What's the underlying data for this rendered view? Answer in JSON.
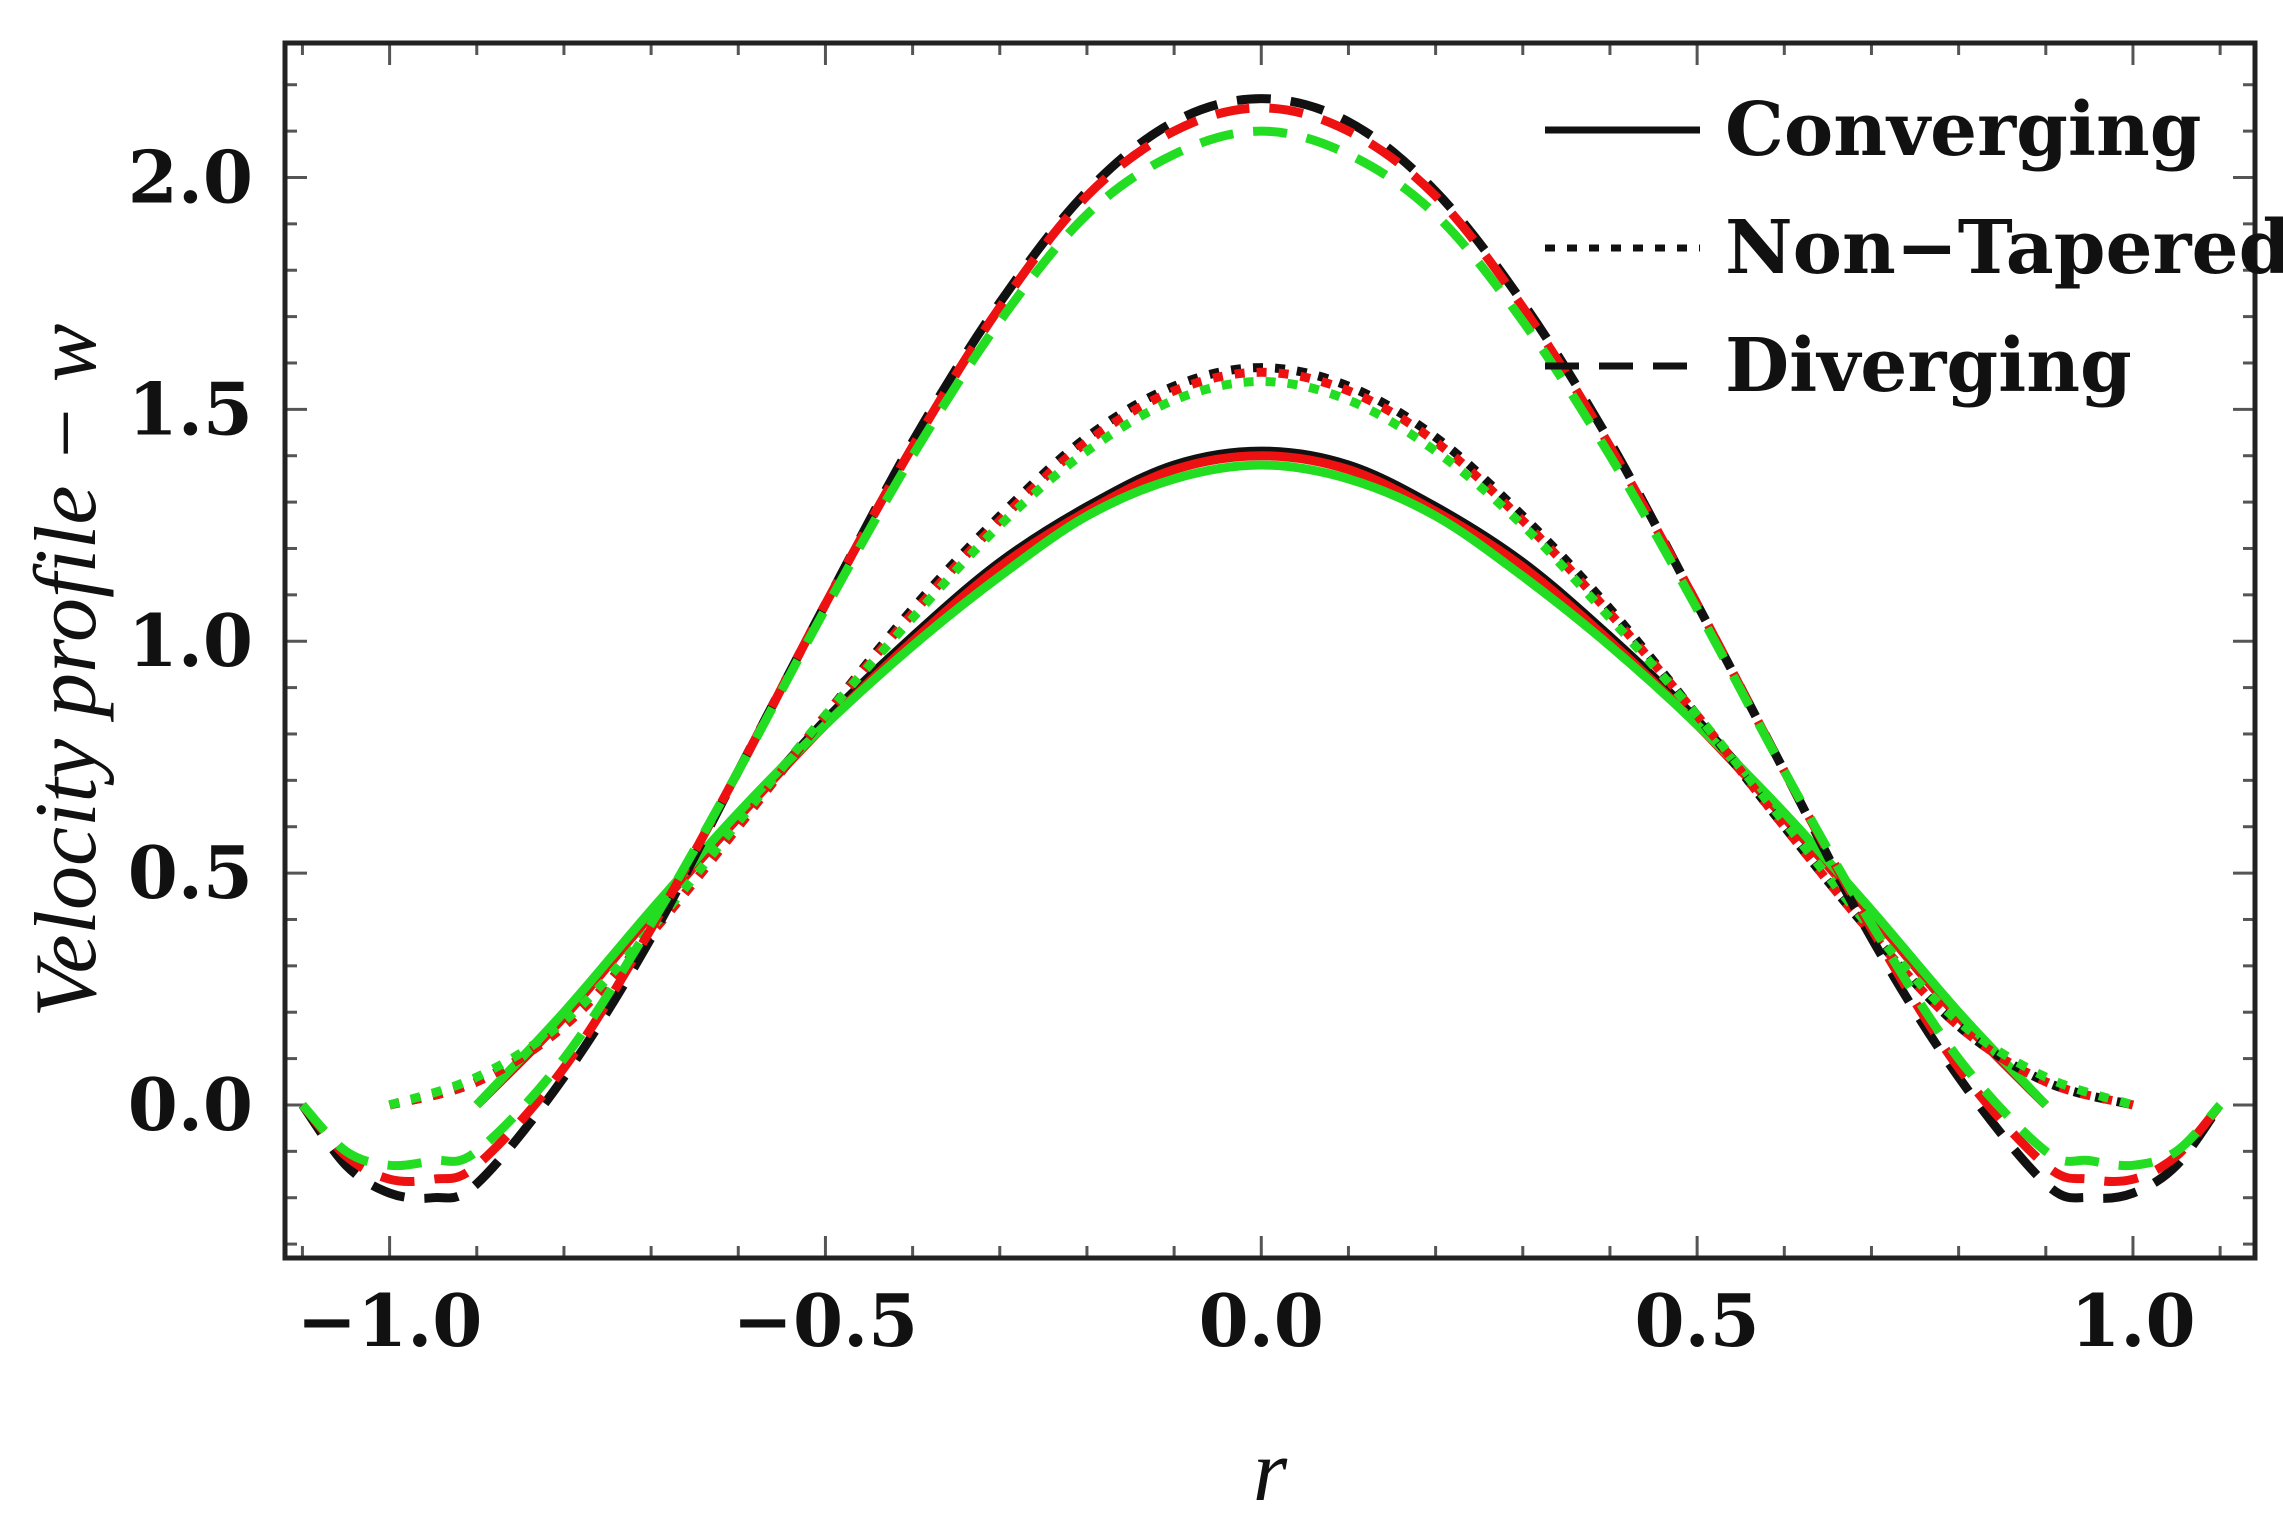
{
  "chart_data": {
    "type": "line",
    "title": "",
    "xlabel": "r",
    "ylabel": "Velocity profile − w",
    "xlim": [
      -1.12,
      1.14
    ],
    "ylim": [
      -0.33,
      2.29
    ],
    "xticks": [
      -1.0,
      -0.5,
      0.0,
      0.5,
      1.0
    ],
    "xtick_labels": [
      "−1.0",
      "−0.5",
      "0.0",
      "0.5",
      "1.0"
    ],
    "yticks": [
      0.0,
      0.5,
      1.0,
      1.5,
      2.0
    ],
    "ytick_labels": [
      "0.0",
      "0.5",
      "1.0",
      "1.5",
      "2.0"
    ],
    "grid": false,
    "legend_position": "top-right",
    "legend": [
      {
        "label": "Converging",
        "style": "solid"
      },
      {
        "label": "Non−Tapered",
        "style": "dotted"
      },
      {
        "label": "Diverging",
        "style": "dashed"
      }
    ],
    "colors": {
      "black": "#111111",
      "red": "#ee1111",
      "green": "#22dd22",
      "frame": "#222222"
    },
    "series": [
      {
        "name": "Converging (black)",
        "style": "solid",
        "color": "#111111",
        "x": [
          -0.9,
          -0.8,
          -0.7,
          -0.6,
          -0.5,
          -0.4,
          -0.3,
          -0.2,
          -0.1,
          0.0,
          0.1,
          0.2,
          0.3,
          0.4,
          0.5,
          0.6,
          0.7,
          0.8,
          0.9
        ],
        "values": [
          0.0,
          0.19,
          0.41,
          0.62,
          0.83,
          1.01,
          1.17,
          1.29,
          1.38,
          1.41,
          1.38,
          1.29,
          1.17,
          1.01,
          0.83,
          0.62,
          0.41,
          0.19,
          0.0
        ]
      },
      {
        "name": "Converging (red)",
        "style": "solid",
        "color": "#ee1111",
        "x": [
          -0.9,
          -0.8,
          -0.7,
          -0.6,
          -0.5,
          -0.4,
          -0.3,
          -0.2,
          -0.1,
          0.0,
          0.1,
          0.2,
          0.3,
          0.4,
          0.5,
          0.6,
          0.7,
          0.8,
          0.9
        ],
        "values": [
          0.0,
          0.19,
          0.41,
          0.62,
          0.82,
          1.0,
          1.16,
          1.28,
          1.37,
          1.4,
          1.37,
          1.28,
          1.16,
          1.0,
          0.82,
          0.62,
          0.41,
          0.19,
          0.0
        ]
      },
      {
        "name": "Converging (green)",
        "style": "solid",
        "color": "#22dd22",
        "x": [
          -0.9,
          -0.8,
          -0.7,
          -0.6,
          -0.5,
          -0.4,
          -0.3,
          -0.2,
          -0.1,
          0.0,
          0.1,
          0.2,
          0.3,
          0.4,
          0.5,
          0.6,
          0.7,
          0.8,
          0.9
        ],
        "values": [
          0.0,
          0.2,
          0.42,
          0.63,
          0.82,
          0.99,
          1.14,
          1.27,
          1.35,
          1.38,
          1.35,
          1.27,
          1.14,
          0.99,
          0.82,
          0.63,
          0.42,
          0.2,
          0.0
        ]
      },
      {
        "name": "Non-Tapered (black)",
        "style": "dotted",
        "color": "#111111",
        "x": [
          -1.0,
          -0.9,
          -0.8,
          -0.7,
          -0.6,
          -0.5,
          -0.4,
          -0.3,
          -0.2,
          -0.1,
          0.0,
          0.1,
          0.2,
          0.3,
          0.4,
          0.5,
          0.6,
          0.7,
          0.8,
          0.9,
          1.0
        ],
        "values": [
          0.0,
          0.05,
          0.17,
          0.37,
          0.6,
          0.84,
          1.07,
          1.27,
          1.44,
          1.55,
          1.59,
          1.55,
          1.44,
          1.27,
          1.07,
          0.84,
          0.6,
          0.37,
          0.17,
          0.05,
          0.0
        ]
      },
      {
        "name": "Non-Tapered (red)",
        "style": "dotted",
        "color": "#ee1111",
        "x": [
          -1.0,
          -0.9,
          -0.8,
          -0.7,
          -0.6,
          -0.5,
          -0.4,
          -0.3,
          -0.2,
          -0.1,
          0.0,
          0.1,
          0.2,
          0.3,
          0.4,
          0.5,
          0.6,
          0.7,
          0.8,
          0.9,
          1.0
        ],
        "values": [
          0.0,
          0.05,
          0.17,
          0.37,
          0.6,
          0.84,
          1.06,
          1.26,
          1.43,
          1.54,
          1.58,
          1.54,
          1.43,
          1.26,
          1.06,
          0.84,
          0.6,
          0.37,
          0.17,
          0.05,
          0.0
        ]
      },
      {
        "name": "Non-Tapered (green)",
        "style": "dotted",
        "color": "#22dd22",
        "x": [
          -1.0,
          -0.9,
          -0.8,
          -0.7,
          -0.6,
          -0.5,
          -0.4,
          -0.3,
          -0.2,
          -0.1,
          0.0,
          0.1,
          0.2,
          0.3,
          0.4,
          0.5,
          0.6,
          0.7,
          0.8,
          0.9,
          1.0
        ],
        "values": [
          0.0,
          0.06,
          0.18,
          0.38,
          0.61,
          0.84,
          1.05,
          1.25,
          1.41,
          1.52,
          1.56,
          1.52,
          1.41,
          1.25,
          1.05,
          0.84,
          0.61,
          0.38,
          0.18,
          0.06,
          0.0
        ]
      },
      {
        "name": "Diverging (black)",
        "style": "dashed",
        "color": "#111111",
        "x": [
          -1.1,
          -1.05,
          -1.0,
          -0.95,
          -0.9,
          -0.8,
          -0.7,
          -0.6,
          -0.5,
          -0.4,
          -0.3,
          -0.2,
          -0.1,
          0.0,
          0.1,
          0.2,
          0.3,
          0.4,
          0.5,
          0.6,
          0.7,
          0.8,
          0.9,
          0.95,
          1.0,
          1.05,
          1.1
        ],
        "values": [
          0.0,
          -0.13,
          -0.19,
          -0.2,
          -0.17,
          0.06,
          0.36,
          0.72,
          1.08,
          1.43,
          1.73,
          1.97,
          2.12,
          2.17,
          2.12,
          1.97,
          1.73,
          1.43,
          1.08,
          0.72,
          0.36,
          0.06,
          -0.17,
          -0.2,
          -0.19,
          -0.13,
          0.0
        ]
      },
      {
        "name": "Diverging (red)",
        "style": "dashed",
        "color": "#ee1111",
        "x": [
          -1.1,
          -1.05,
          -1.0,
          -0.95,
          -0.9,
          -0.8,
          -0.7,
          -0.6,
          -0.5,
          -0.4,
          -0.3,
          -0.2,
          -0.1,
          0.0,
          0.1,
          0.2,
          0.3,
          0.4,
          0.5,
          0.6,
          0.7,
          0.8,
          0.9,
          0.95,
          1.0,
          1.05,
          1.1
        ],
        "values": [
          0.0,
          -0.11,
          -0.16,
          -0.16,
          -0.13,
          0.08,
          0.38,
          0.72,
          1.08,
          1.42,
          1.72,
          1.96,
          2.1,
          2.15,
          2.1,
          1.96,
          1.72,
          1.42,
          1.08,
          0.72,
          0.38,
          0.08,
          -0.13,
          -0.16,
          -0.16,
          -0.11,
          0.0
        ]
      },
      {
        "name": "Diverging (green)",
        "style": "dashed",
        "color": "#22dd22",
        "x": [
          -1.1,
          -1.05,
          -1.0,
          -0.95,
          -0.9,
          -0.8,
          -0.7,
          -0.6,
          -0.5,
          -0.4,
          -0.3,
          -0.2,
          -0.1,
          0.0,
          0.1,
          0.2,
          0.3,
          0.4,
          0.5,
          0.6,
          0.7,
          0.8,
          0.9,
          0.95,
          1.0,
          1.05,
          1.1
        ],
        "values": [
          0.0,
          -0.1,
          -0.13,
          -0.12,
          -0.1,
          0.1,
          0.39,
          0.72,
          1.07,
          1.4,
          1.69,
          1.92,
          2.05,
          2.1,
          2.05,
          1.92,
          1.69,
          1.4,
          1.07,
          0.72,
          0.39,
          0.1,
          -0.1,
          -0.12,
          -0.13,
          -0.1,
          0.0
        ]
      }
    ]
  }
}
